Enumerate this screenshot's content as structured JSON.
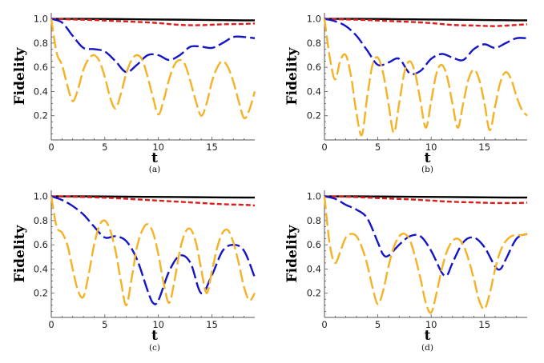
{
  "chart_data": [
    {
      "type": "line",
      "caption": "(a)",
      "xlabel": "t",
      "ylabel": "Fidelity",
      "xlim": [
        0,
        19
      ],
      "ylim": [
        0,
        1.05
      ],
      "xticks": [
        "0",
        "5",
        "10",
        "15"
      ],
      "yticks": [
        "0.2",
        "0.4",
        "0.6",
        "0.8",
        "1.0"
      ],
      "series": [
        {
          "color": "#000000",
          "style": "solid",
          "x": [
            0,
            3,
            6,
            9,
            12,
            15,
            18,
            19
          ],
          "y": [
            1.0,
            1.0,
            0.998,
            0.995,
            0.993,
            0.99,
            0.988,
            0.988
          ]
        },
        {
          "color": "#dd1c1c",
          "style": "dashed",
          "x": [
            0,
            2,
            4,
            6,
            8,
            10,
            12,
            14,
            16,
            18,
            19
          ],
          "y": [
            1.0,
            0.995,
            0.99,
            0.982,
            0.975,
            0.965,
            0.95,
            0.948,
            0.955,
            0.958,
            0.962
          ]
        },
        {
          "color": "#1515c8",
          "style": "longdash",
          "x": [
            0,
            1,
            2,
            3,
            4,
            5,
            6,
            7,
            8,
            9,
            10,
            11,
            12,
            13,
            14,
            15,
            16,
            17,
            18,
            19
          ],
          "y": [
            1.0,
            0.97,
            0.86,
            0.76,
            0.75,
            0.73,
            0.65,
            0.56,
            0.62,
            0.7,
            0.7,
            0.66,
            0.7,
            0.77,
            0.77,
            0.76,
            0.8,
            0.85,
            0.85,
            0.84
          ]
        },
        {
          "color": "#f5b225",
          "style": "longdash",
          "x": [
            0,
            0.5,
            1,
            1.5,
            2,
            2.5,
            3,
            3.5,
            4,
            4.5,
            5,
            5.5,
            6,
            6.5,
            7,
            7.5,
            8,
            8.5,
            9,
            9.5,
            10,
            10.5,
            11,
            11.5,
            12,
            12.5,
            13,
            13.5,
            14,
            14.5,
            15,
            15.5,
            16,
            16.5,
            17,
            17.5,
            18,
            18.5,
            19
          ],
          "y": [
            1.0,
            0.72,
            0.62,
            0.45,
            0.32,
            0.42,
            0.58,
            0.67,
            0.7,
            0.65,
            0.52,
            0.35,
            0.26,
            0.38,
            0.55,
            0.66,
            0.7,
            0.66,
            0.52,
            0.35,
            0.21,
            0.33,
            0.5,
            0.62,
            0.66,
            0.62,
            0.48,
            0.32,
            0.2,
            0.3,
            0.48,
            0.6,
            0.65,
            0.6,
            0.48,
            0.32,
            0.18,
            0.25,
            0.4
          ]
        }
      ]
    },
    {
      "type": "line",
      "caption": "(b)",
      "xlabel": "t",
      "ylabel": "Fidelity",
      "xlim": [
        0,
        19
      ],
      "ylim": [
        0,
        1.05
      ],
      "xticks": [
        "0",
        "5",
        "10",
        "15"
      ],
      "yticks": [
        "0.2",
        "0.4",
        "0.6",
        "0.8",
        "1.0"
      ],
      "series": [
        {
          "color": "#000000",
          "style": "solid",
          "x": [
            0,
            3,
            6,
            9,
            12,
            15,
            18,
            19
          ],
          "y": [
            1.0,
            1.0,
            0.998,
            0.995,
            0.993,
            0.99,
            0.988,
            0.988
          ]
        },
        {
          "color": "#dd1c1c",
          "style": "dashed",
          "x": [
            0,
            2,
            4,
            6,
            8,
            10,
            12,
            14,
            16,
            18,
            19
          ],
          "y": [
            1.0,
            0.995,
            0.99,
            0.982,
            0.975,
            0.965,
            0.95,
            0.945,
            0.94,
            0.95,
            0.955
          ]
        },
        {
          "color": "#1515c8",
          "style": "longdash",
          "x": [
            0,
            1,
            2,
            3,
            4,
            5,
            6,
            7,
            8,
            9,
            10,
            11,
            12,
            13,
            14,
            15,
            16,
            17,
            18,
            19
          ],
          "y": [
            1.0,
            0.98,
            0.94,
            0.86,
            0.74,
            0.62,
            0.64,
            0.67,
            0.55,
            0.57,
            0.67,
            0.71,
            0.68,
            0.66,
            0.75,
            0.79,
            0.76,
            0.8,
            0.84,
            0.84
          ]
        },
        {
          "color": "#f5b225",
          "style": "longdash",
          "x": [
            0,
            0.5,
            1,
            1.5,
            2,
            2.5,
            3,
            3.5,
            4,
            4.5,
            5,
            5.5,
            6,
            6.5,
            7,
            7.5,
            8,
            8.5,
            9,
            9.5,
            10,
            10.5,
            11,
            11.5,
            12,
            12.5,
            13,
            13.5,
            14,
            14.5,
            15,
            15.5,
            16,
            16.5,
            17,
            17.5,
            18,
            18.5,
            19
          ],
          "y": [
            1.0,
            0.68,
            0.5,
            0.66,
            0.7,
            0.52,
            0.22,
            0.04,
            0.35,
            0.62,
            0.68,
            0.55,
            0.3,
            0.06,
            0.3,
            0.56,
            0.65,
            0.55,
            0.32,
            0.1,
            0.32,
            0.55,
            0.62,
            0.52,
            0.3,
            0.1,
            0.3,
            0.5,
            0.58,
            0.5,
            0.3,
            0.08,
            0.28,
            0.48,
            0.56,
            0.5,
            0.36,
            0.25,
            0.2
          ]
        }
      ]
    },
    {
      "type": "line",
      "caption": "(c)",
      "xlabel": "t",
      "ylabel": "Fidelity",
      "xlim": [
        0,
        19
      ],
      "ylim": [
        0,
        1.05
      ],
      "xticks": [
        "0",
        "5",
        "10",
        "15"
      ],
      "yticks": [
        "0.2",
        "0.4",
        "0.6",
        "0.8",
        "1.0"
      ],
      "series": [
        {
          "color": "#000000",
          "style": "solid",
          "x": [
            0,
            3,
            6,
            9,
            12,
            15,
            18,
            19
          ],
          "y": [
            1.0,
            1.0,
            0.998,
            0.996,
            0.994,
            0.992,
            0.99,
            0.99
          ]
        },
        {
          "color": "#dd1c1c",
          "style": "dashed",
          "x": [
            0,
            2,
            4,
            6,
            8,
            10,
            12,
            14,
            16,
            18,
            19
          ],
          "y": [
            1.0,
            0.997,
            0.992,
            0.985,
            0.975,
            0.965,
            0.955,
            0.945,
            0.935,
            0.93,
            0.925
          ]
        },
        {
          "color": "#1515c8",
          "style": "longdash",
          "x": [
            0,
            1,
            2,
            3,
            4,
            5,
            6,
            7,
            8,
            9,
            9.5,
            10,
            11,
            12,
            13,
            14,
            15,
            16,
            17,
            18,
            19
          ],
          "y": [
            1.0,
            0.97,
            0.92,
            0.85,
            0.75,
            0.66,
            0.67,
            0.63,
            0.48,
            0.22,
            0.12,
            0.14,
            0.38,
            0.51,
            0.45,
            0.2,
            0.35,
            0.55,
            0.6,
            0.55,
            0.33
          ]
        },
        {
          "color": "#f5b225",
          "style": "longdash",
          "x": [
            0,
            0.5,
            1,
            1.5,
            2,
            2.5,
            3,
            3.5,
            4,
            4.5,
            5,
            5.5,
            6,
            6.5,
            7,
            7.5,
            8,
            8.5,
            9,
            9.5,
            10,
            10.5,
            11,
            11.5,
            12,
            12.5,
            13,
            13.5,
            14,
            14.5,
            15,
            15.5,
            16,
            16.5,
            17,
            17.5,
            18,
            18.5,
            19
          ],
          "y": [
            1.0,
            0.75,
            0.7,
            0.6,
            0.4,
            0.22,
            0.17,
            0.36,
            0.6,
            0.76,
            0.8,
            0.72,
            0.55,
            0.3,
            0.1,
            0.32,
            0.58,
            0.72,
            0.77,
            0.7,
            0.52,
            0.28,
            0.12,
            0.3,
            0.55,
            0.7,
            0.73,
            0.62,
            0.4,
            0.2,
            0.38,
            0.58,
            0.7,
            0.72,
            0.62,
            0.45,
            0.25,
            0.14,
            0.2
          ]
        }
      ]
    },
    {
      "type": "line",
      "caption": "(d)",
      "xlabel": "t",
      "ylabel": "Fidelity",
      "xlim": [
        0,
        19
      ],
      "ylim": [
        0,
        1.05
      ],
      "xticks": [
        "0",
        "5",
        "10",
        "15"
      ],
      "yticks": [
        "0.2",
        "0.4",
        "0.6",
        "0.8",
        "1.0"
      ],
      "series": [
        {
          "color": "#000000",
          "style": "solid",
          "x": [
            0,
            3,
            6,
            9,
            12,
            15,
            18,
            19
          ],
          "y": [
            1.0,
            1.0,
            0.998,
            0.996,
            0.994,
            0.992,
            0.99,
            0.99
          ]
        },
        {
          "color": "#dd1c1c",
          "style": "dashed",
          "x": [
            0,
            2,
            4,
            6,
            8,
            10,
            12,
            14,
            16,
            18,
            19
          ],
          "y": [
            1.0,
            0.997,
            0.99,
            0.982,
            0.975,
            0.965,
            0.955,
            0.95,
            0.945,
            0.945,
            0.948
          ]
        },
        {
          "color": "#1515c8",
          "style": "longdash",
          "x": [
            0,
            1,
            2,
            3,
            4,
            5,
            5.5,
            6,
            7,
            8,
            9,
            10,
            11,
            11.5,
            12,
            13,
            14,
            15,
            16,
            16.5,
            17,
            18,
            19
          ],
          "y": [
            1.0,
            0.98,
            0.93,
            0.89,
            0.82,
            0.62,
            0.52,
            0.51,
            0.6,
            0.67,
            0.67,
            0.55,
            0.37,
            0.35,
            0.45,
            0.62,
            0.66,
            0.58,
            0.42,
            0.4,
            0.48,
            0.65,
            0.69
          ]
        },
        {
          "color": "#f5b225",
          "style": "longdash",
          "x": [
            0,
            0.5,
            1,
            1.5,
            2,
            2.5,
            3,
            3.5,
            4,
            4.5,
            5,
            5.5,
            6,
            6.5,
            7,
            7.5,
            8,
            8.5,
            9,
            9.5,
            10,
            10.5,
            11,
            11.5,
            12,
            12.5,
            13,
            13.5,
            14,
            14.5,
            15,
            15.5,
            16,
            16.5,
            17,
            17.5,
            18,
            18.5,
            19
          ],
          "y": [
            1.0,
            0.6,
            0.45,
            0.55,
            0.66,
            0.69,
            0.67,
            0.58,
            0.44,
            0.25,
            0.11,
            0.22,
            0.42,
            0.58,
            0.67,
            0.69,
            0.64,
            0.5,
            0.32,
            0.12,
            0.04,
            0.2,
            0.4,
            0.55,
            0.63,
            0.65,
            0.6,
            0.48,
            0.32,
            0.14,
            0.07,
            0.2,
            0.4,
            0.55,
            0.63,
            0.67,
            0.68,
            0.68,
            0.69
          ]
        }
      ]
    }
  ]
}
